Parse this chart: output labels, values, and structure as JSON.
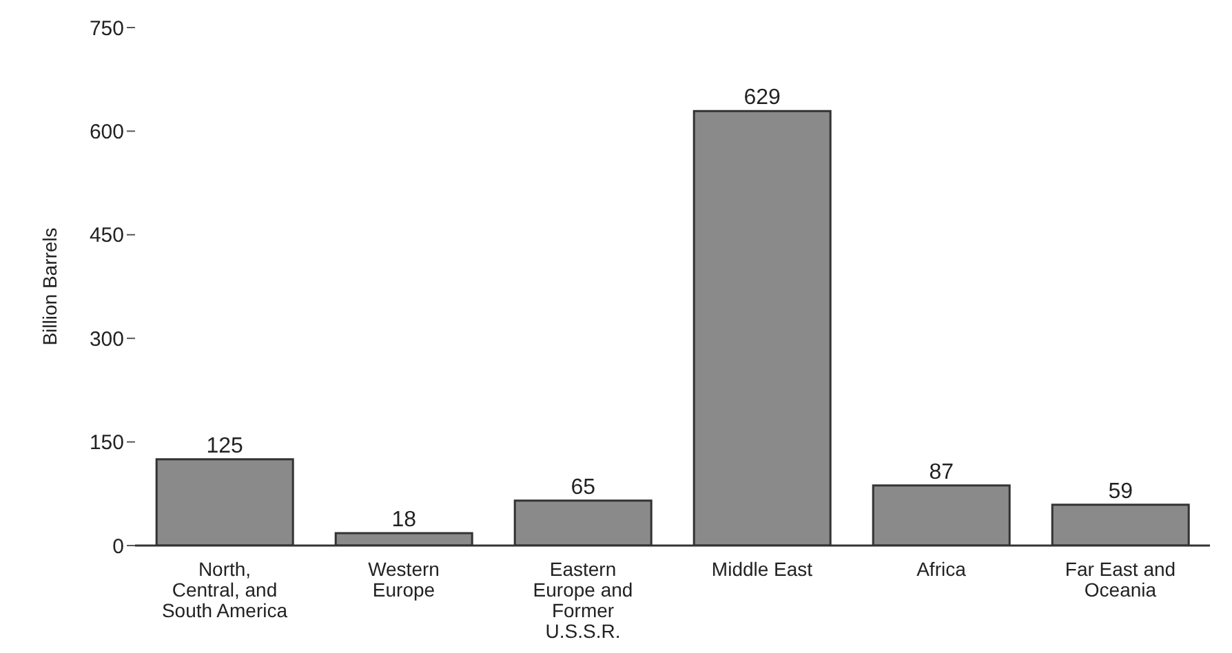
{
  "chart_data": {
    "type": "bar",
    "ylabel": "Billion Barrels",
    "categories": [
      "North, Central, and South America",
      "Western Europe",
      "Eastern Europe and Former U.S.S.R.",
      "Middle East",
      "Africa",
      "Far East and Oceania"
    ],
    "values": [
      125,
      18,
      65,
      629,
      87,
      59
    ],
    "color": "#8a8a8a",
    "ylim": [
      0,
      750
    ],
    "yticks": [
      0,
      150,
      300,
      450,
      600,
      750
    ],
    "data_labels": true,
    "grid": false,
    "legend": false
  }
}
